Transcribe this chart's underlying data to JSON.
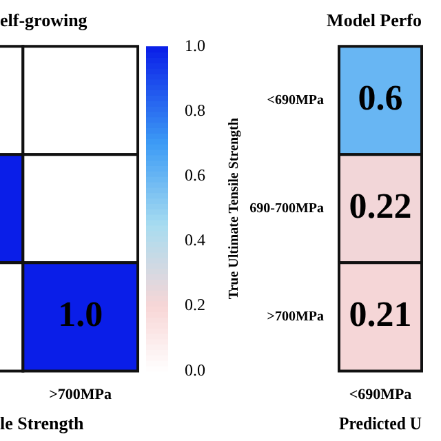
{
  "chart_data": [
    {
      "type": "heatmap",
      "title": "elf-growing",
      "xlabel": "le Strength",
      "categories": [
        null,
        ">700MPa"
      ],
      "y_categories": [
        null,
        null,
        null
      ],
      "cells": [
        [
          0,
          0
        ],
        [
          1,
          0
        ],
        [
          0,
          1
        ]
      ],
      "cell_labels": [
        [
          null,
          null
        ],
        [
          null,
          null
        ],
        [
          null,
          "1.0"
        ]
      ],
      "clim": [
        0,
        1
      ],
      "cticks": [
        {
          "value": 0,
          "label": "0.0"
        },
        {
          "value": 0.2,
          "label": "0.2"
        },
        {
          "value": 0.4,
          "label": "0.4"
        },
        {
          "value": 0.6,
          "label": "0.6"
        },
        {
          "value": 0.8,
          "label": "0.8"
        },
        {
          "value": 1,
          "label": "1.0"
        }
      ]
    },
    {
      "type": "heatmap",
      "title": "Model Perfo",
      "xlabel": "Predicted U",
      "ylabel": "True Ultimate Tensile Strength",
      "categories": [
        "<690MPa"
      ],
      "y_categories": [
        "<690MPa",
        "690-700MPa",
        ">700MPa"
      ],
      "cells": [
        [
          0.6
        ],
        [
          0.22
        ],
        [
          0.21
        ]
      ],
      "data_labels": true
    }
  ]
}
